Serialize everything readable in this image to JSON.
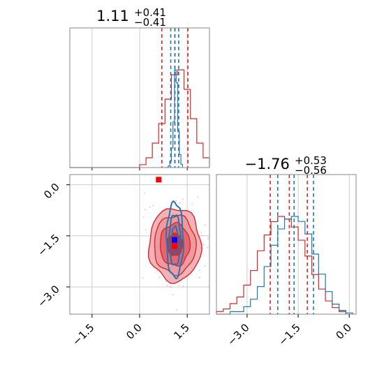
{
  "chart_data": [
    {
      "type": "histogram",
      "panel": "marginal-x",
      "title_value": "1.11",
      "title_plus": "+0.41",
      "title_minus": "−0.41",
      "xlim": [
        -2.2,
        2.2
      ],
      "grid": true,
      "series": [
        {
          "color": "#d62728",
          "bins": [
            [
              -2.2,
              0
            ],
            [
              0.0,
              0.3
            ],
            [
              0.2,
              1.0
            ],
            [
              0.4,
              2.5
            ],
            [
              0.6,
              4.5
            ],
            [
              0.8,
              7
            ],
            [
              1.0,
              9.5
            ],
            [
              1.2,
              10
            ],
            [
              1.4,
              8
            ],
            [
              1.6,
              5
            ],
            [
              1.8,
              2.5
            ],
            [
              2.0,
              1
            ],
            [
              2.2,
              0
            ]
          ],
          "quantiles": [
            0.7,
            1.11,
            1.52
          ]
        },
        {
          "color": "#1f77b4",
          "bins": [
            [
              0.8,
              0
            ],
            [
              0.9,
              1
            ],
            [
              0.95,
              4
            ],
            [
              1.0,
              12
            ],
            [
              1.05,
              28
            ],
            [
              1.1,
              60
            ],
            [
              1.15,
              52
            ],
            [
              1.2,
              22
            ],
            [
              1.25,
              8
            ],
            [
              1.3,
              2
            ],
            [
              1.35,
              0
            ]
          ],
          "quantiles": [
            0.98,
            1.11,
            1.23
          ]
        }
      ]
    },
    {
      "type": "contour",
      "panel": "joint",
      "xlim": [
        -2.2,
        2.2
      ],
      "ylim": [
        -3.8,
        0.3
      ],
      "x_ticks": [
        "−1.5",
        "0.0",
        "1.5"
      ],
      "x_tick_values": [
        -1.5,
        0.0,
        1.5
      ],
      "y_ticks": [
        "0.0",
        "−1.5",
        "−3.0"
      ],
      "y_tick_values": [
        0.0,
        -1.5,
        -3.0
      ],
      "series": [
        {
          "color": "#d62728",
          "center": [
            1.11,
            -1.76
          ],
          "sd": [
            0.41,
            0.54
          ]
        },
        {
          "color": "#1f77b4",
          "center": [
            1.11,
            -1.62
          ],
          "sd": [
            0.12,
            0.5
          ]
        }
      ],
      "truth_markers": [
        {
          "color": "#ff0000",
          "x": 0.6,
          "y": 0.15
        },
        {
          "color": "#ff0000",
          "x": 1.1,
          "y": -1.8
        },
        {
          "color": "#0000ff",
          "x": 1.1,
          "y": -1.62
        }
      ]
    },
    {
      "type": "histogram",
      "panel": "marginal-y",
      "title_value": "−1.76",
      "title_plus": "+0.53",
      "title_minus": "−0.56",
      "xlim": [
        -3.9,
        0.2
      ],
      "x_ticks": [
        "−3.0",
        "−1.5",
        "0.0"
      ],
      "x_tick_values": [
        -3.0,
        -1.5,
        0.0
      ],
      "grid": true,
      "series": [
        {
          "color": "#d62728",
          "bins": [
            [
              -3.9,
              2
            ],
            [
              -3.7,
              4
            ],
            [
              -3.5,
              8
            ],
            [
              -3.3,
              13
            ],
            [
              -3.1,
              22
            ],
            [
              -2.9,
              33
            ],
            [
              -2.7,
              48
            ],
            [
              -2.5,
              60
            ],
            [
              -2.3,
              70
            ],
            [
              -2.1,
              74
            ],
            [
              -1.9,
              72
            ],
            [
              -1.7,
              66
            ],
            [
              -1.5,
              56
            ],
            [
              -1.3,
              44
            ],
            [
              -1.1,
              30
            ],
            [
              -0.9,
              19
            ],
            [
              -0.7,
              10
            ],
            [
              -0.5,
              5
            ],
            [
              -0.3,
              2
            ],
            [
              -0.1,
              0
            ]
          ],
          "quantiles": [
            -2.32,
            -1.76,
            -1.23
          ]
        },
        {
          "color": "#1f77b4",
          "bins": [
            [
              -3.9,
              0
            ],
            [
              -3.5,
              2
            ],
            [
              -3.1,
              6
            ],
            [
              -2.9,
              12
            ],
            [
              -2.7,
              22
            ],
            [
              -2.5,
              38
            ],
            [
              -2.3,
              55
            ],
            [
              -2.1,
              68
            ],
            [
              -1.9,
              76
            ],
            [
              -1.7,
              78
            ],
            [
              -1.5,
              74
            ],
            [
              -1.3,
              64
            ],
            [
              -1.1,
              48
            ],
            [
              -0.9,
              32
            ],
            [
              -0.7,
              18
            ],
            [
              -0.5,
              8
            ],
            [
              -0.3,
              3
            ],
            [
              -0.1,
              1
            ],
            [
              0.1,
              0
            ]
          ],
          "quantiles": [
            -2.1,
            -1.62,
            -1.05
          ]
        }
      ]
    }
  ]
}
